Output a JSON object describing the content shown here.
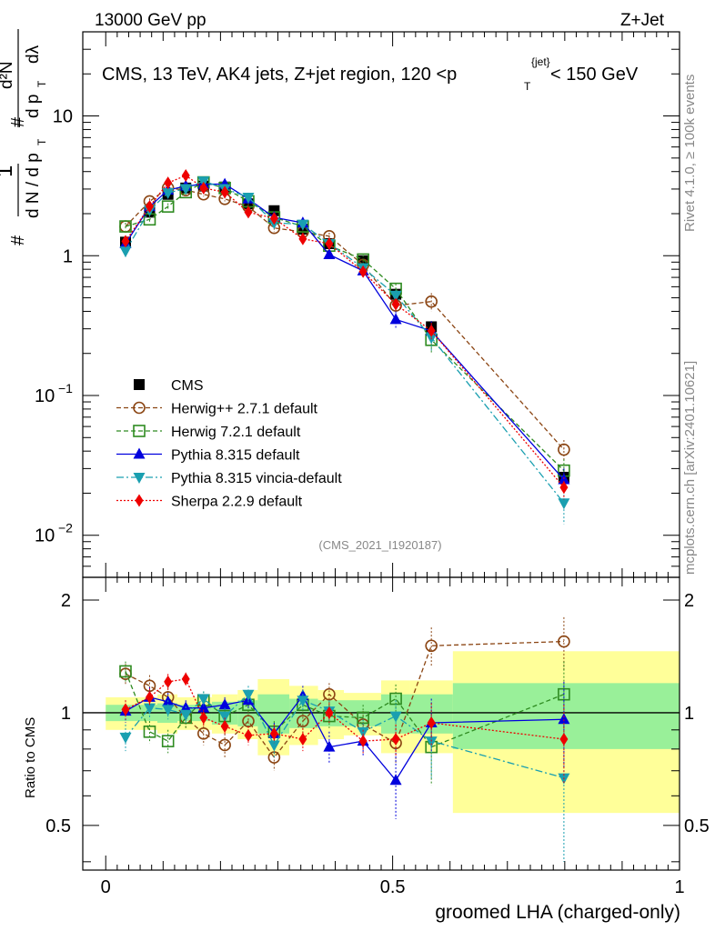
{
  "header": {
    "energy_label": "13000 GeV pp",
    "process_label": "Z+Jet"
  },
  "side": {
    "rivet_label": "Rivet 4.1.0, ≥ 100k events",
    "site_label": "mcplots.cern.ch [arXiv:2401.10621]"
  },
  "chart_data": [
    {
      "type": "line",
      "panel": "main",
      "title": "CMS, 13 TeV, AK4 jets, Z+jet region, 120 <p_T^{jet}< 150 GeV",
      "ylabel": "1/dN/dp_T  d²N/dp_T dλ",
      "yscale": "log",
      "ylim": [
        0.005,
        40
      ],
      "xlim": [
        -0.04,
        1.0
      ],
      "y_ticks": [
        "10^{-2}",
        "10^{-1}",
        "1",
        "10"
      ],
      "watermark": "(CMS_2021_I1920187)",
      "legend_position": "bottom-left",
      "x": [
        0.0345,
        0.0765,
        0.1085,
        0.1395,
        0.1705,
        0.2075,
        0.2485,
        0.2935,
        0.3435,
        0.3895,
        0.4485,
        0.5055,
        0.5675,
        0.7985
      ],
      "series": [
        {
          "name": "CMS",
          "key": "cms",
          "color": "#000000",
          "marker": "square-filled",
          "dash": "none",
          "values": [
            1.25,
            2.05,
            2.75,
            3.05,
            3.15,
            3.1,
            2.35,
            2.1,
            1.55,
            1.22,
            0.92,
            0.53,
            0.31,
            0.026
          ],
          "errors": [
            0.08,
            0.1,
            0.1,
            0.1,
            0.1,
            0.1,
            0.1,
            0.08,
            0.07,
            0.06,
            0.05,
            0.04,
            0.03,
            0.004
          ]
        },
        {
          "name": "Herwig++ 2.7.1 default",
          "key": "herwigpp",
          "color": "#8B4513",
          "marker": "circle-open",
          "dash": "5,3",
          "values": [
            1.62,
            2.45,
            3.05,
            2.95,
            2.75,
            2.55,
            2.25,
            1.58,
            1.48,
            1.38,
            0.86,
            0.44,
            0.47,
            0.041
          ],
          "errors": [
            0.1,
            0.12,
            0.12,
            0.12,
            0.1,
            0.1,
            0.1,
            0.1,
            0.08,
            0.08,
            0.07,
            0.05,
            0.07,
            0.007
          ]
        },
        {
          "name": "Herwig 7.2.1 default",
          "key": "herwig7",
          "color": "#2E8B20",
          "marker": "square-open",
          "dash": "5,3",
          "values": [
            1.62,
            1.82,
            2.25,
            2.85,
            3.35,
            3.05,
            2.45,
            1.88,
            1.62,
            1.18,
            0.94,
            0.58,
            0.25,
            0.029
          ],
          "errors": [
            0.1,
            0.1,
            0.12,
            0.12,
            0.12,
            0.12,
            0.1,
            0.1,
            0.08,
            0.07,
            0.07,
            0.05,
            0.05,
            0.006
          ]
        },
        {
          "name": "Pythia 8.315 default",
          "key": "pythia",
          "color": "#0000DD",
          "marker": "triangle-up",
          "dash": "none",
          "values": [
            1.22,
            2.25,
            2.95,
            3.15,
            3.25,
            3.25,
            2.55,
            1.88,
            1.72,
            1.02,
            0.78,
            0.35,
            0.29,
            0.025
          ],
          "errors": [
            0.1,
            0.12,
            0.12,
            0.12,
            0.12,
            0.12,
            0.1,
            0.1,
            0.08,
            0.08,
            0.06,
            0.05,
            0.05,
            0.005
          ]
        },
        {
          "name": "Pythia 8.315 vincia-default",
          "key": "vincia",
          "color": "#1A9FB0",
          "marker": "triangle-down",
          "dash": "8,3,2,3",
          "values": [
            1.08,
            2.12,
            2.82,
            3.02,
            3.42,
            3.02,
            2.62,
            1.72,
            1.68,
            1.22,
            0.82,
            0.52,
            0.26,
            0.017
          ],
          "errors": [
            0.1,
            0.12,
            0.12,
            0.12,
            0.12,
            0.12,
            0.1,
            0.1,
            0.08,
            0.07,
            0.06,
            0.05,
            0.05,
            0.005
          ]
        },
        {
          "name": "Sherpa 2.2.9 default",
          "key": "sherpa",
          "color": "#EE0000",
          "marker": "diamond",
          "dash": "2,2",
          "values": [
            1.27,
            2.25,
            3.32,
            3.75,
            3.05,
            2.85,
            2.05,
            1.85,
            1.32,
            1.22,
            0.77,
            0.45,
            0.29,
            0.022
          ],
          "errors": [
            0.08,
            0.1,
            0.12,
            0.12,
            0.1,
            0.1,
            0.08,
            0.08,
            0.07,
            0.06,
            0.05,
            0.04,
            0.04,
            0.004
          ]
        }
      ]
    },
    {
      "type": "line",
      "panel": "ratio",
      "xlabel": "groomed LHA (charged-only)",
      "ylabel": "Ratio to CMS",
      "ylim": [
        0.38,
        2.3
      ],
      "xlim": [
        -0.04,
        1.0
      ],
      "x_ticks": [
        "0",
        "0.5",
        "1"
      ],
      "y_ticks": [
        "0.5",
        "1",
        "2"
      ],
      "bin_edges": [
        0.0,
        0.06,
        0.09,
        0.125,
        0.155,
        0.185,
        0.23,
        0.265,
        0.32,
        0.37,
        0.415,
        0.48,
        0.53,
        0.605,
        1.0
      ],
      "band_yellow": [
        [
          0.9,
          1.1
        ],
        [
          0.9,
          1.1
        ],
        [
          0.88,
          1.12
        ],
        [
          0.9,
          1.1
        ],
        [
          0.9,
          1.1
        ],
        [
          0.88,
          1.12
        ],
        [
          0.85,
          1.15
        ],
        [
          0.77,
          1.23
        ],
        [
          0.82,
          1.18
        ],
        [
          0.85,
          1.15
        ],
        [
          0.87,
          1.13
        ],
        [
          0.78,
          1.22
        ],
        [
          0.78,
          1.22
        ],
        [
          0.54,
          1.46
        ]
      ],
      "band_green": [
        [
          0.95,
          1.05
        ],
        [
          0.95,
          1.05
        ],
        [
          0.94,
          1.06
        ],
        [
          0.95,
          1.05
        ],
        [
          0.95,
          1.05
        ],
        [
          0.93,
          1.07
        ],
        [
          0.92,
          1.08
        ],
        [
          0.88,
          1.12
        ],
        [
          0.91,
          1.09
        ],
        [
          0.92,
          1.08
        ],
        [
          0.92,
          1.08
        ],
        [
          0.88,
          1.12
        ],
        [
          0.88,
          1.12
        ],
        [
          0.8,
          1.2
        ]
      ],
      "series": [
        {
          "key": "herwigpp",
          "values": [
            1.27,
            1.18,
            1.1,
            0.97,
            0.88,
            0.82,
            0.95,
            0.76,
            0.95,
            1.12,
            0.93,
            0.83,
            1.51,
            1.55
          ],
          "errors": [
            0.08,
            0.08,
            0.07,
            0.06,
            0.06,
            0.06,
            0.06,
            0.06,
            0.07,
            0.08,
            0.08,
            0.1,
            0.18,
            0.25
          ]
        },
        {
          "key": "herwig7",
          "values": [
            1.29,
            0.89,
            0.84,
            0.97,
            1.08,
            0.98,
            1.05,
            0.89,
            1.05,
            0.98,
            0.97,
            1.09,
            0.81,
            1.12
          ],
          "errors": [
            0.08,
            0.06,
            0.06,
            0.06,
            0.06,
            0.06,
            0.06,
            0.06,
            0.07,
            0.07,
            0.08,
            0.1,
            0.17,
            0.25
          ]
        },
        {
          "key": "pythia",
          "values": [
            1.01,
            1.1,
            1.07,
            1.03,
            1.03,
            1.05,
            1.08,
            0.88,
            1.11,
            0.81,
            0.84,
            0.66,
            0.94,
            0.96
          ],
          "errors": [
            0.07,
            0.07,
            0.06,
            0.05,
            0.05,
            0.05,
            0.06,
            0.06,
            0.07,
            0.08,
            0.07,
            0.14,
            0.15,
            0.25
          ]
        },
        {
          "key": "vincia",
          "values": [
            0.86,
            1.03,
            1.02,
            0.99,
            1.09,
            0.98,
            1.12,
            0.82,
            1.08,
            1.01,
            0.89,
            0.98,
            0.84,
            0.67
          ],
          "errors": [
            0.07,
            0.07,
            0.06,
            0.05,
            0.05,
            0.05,
            0.06,
            0.06,
            0.07,
            0.07,
            0.07,
            0.1,
            0.17,
            0.27
          ]
        },
        {
          "key": "sherpa",
          "values": [
            1.02,
            1.1,
            1.21,
            1.23,
            0.97,
            0.92,
            0.87,
            0.88,
            0.85,
            1.0,
            0.84,
            0.85,
            0.94,
            0.85
          ],
          "errors": [
            0.06,
            0.06,
            0.06,
            0.05,
            0.05,
            0.05,
            0.05,
            0.05,
            0.06,
            0.06,
            0.06,
            0.08,
            0.12,
            0.2
          ]
        }
      ]
    }
  ]
}
